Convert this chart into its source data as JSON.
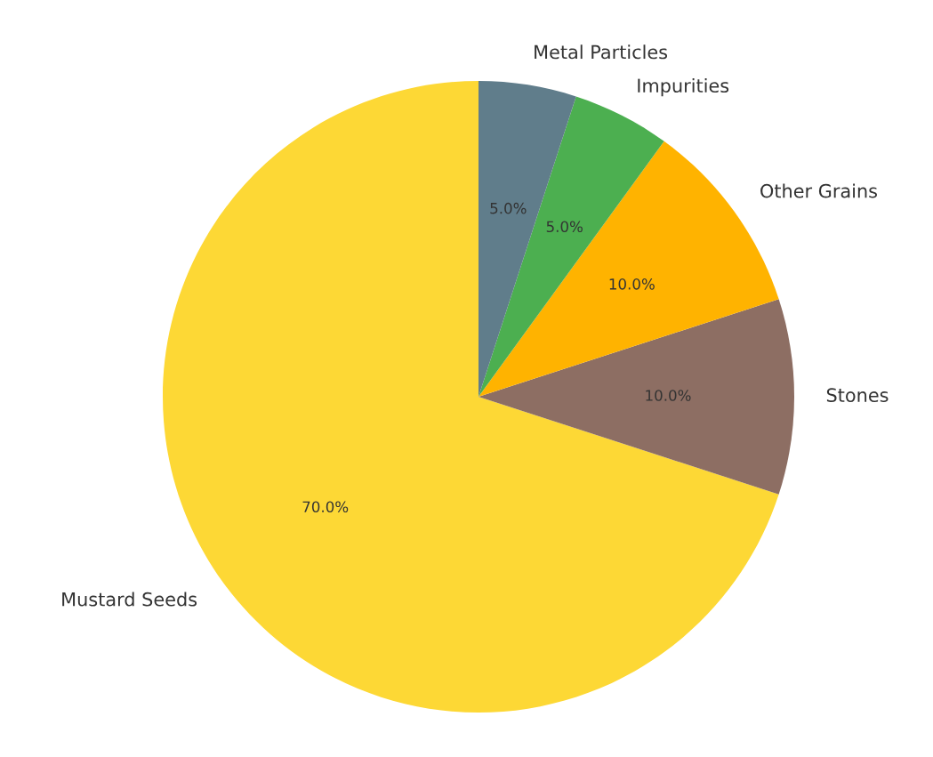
{
  "chart_data": {
    "type": "pie",
    "categories": [
      "Mustard Seeds",
      "Stones",
      "Other Grains",
      "Impurities",
      "Metal Particles"
    ],
    "values": [
      70,
      10,
      10,
      5,
      5
    ],
    "colors": [
      "#fdd835",
      "#8d6e63",
      "#ffb300",
      "#4caf50",
      "#607d8b"
    ],
    "value_labels": [
      "70.0%",
      "10.0%",
      "10.0%",
      "5.0%",
      "5.0%"
    ]
  }
}
